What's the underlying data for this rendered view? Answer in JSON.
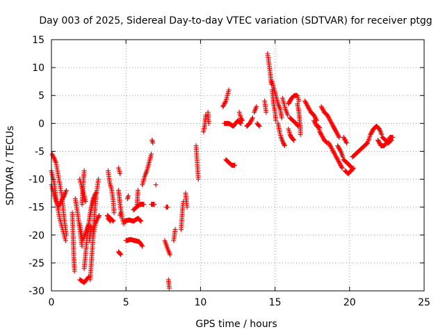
{
  "chart_data": {
    "type": "scatter",
    "title": "Day 003 of 2025, Sidereal Day-to-day VTEC variation (SDTVAR) for receiver ptgg",
    "xlabel": "GPS time / hours",
    "ylabel": "SDTVAR / TECUs",
    "xlim": [
      0,
      25
    ],
    "ylim": [
      -30,
      15
    ],
    "xticks": [
      "0",
      "5",
      "10",
      "15",
      "20",
      "25"
    ],
    "yticks": [
      "15",
      "10",
      "5",
      "0",
      "-5",
      "-10",
      "-15",
      "-20",
      "-25",
      "-30"
    ],
    "grid": true,
    "marker": "+",
    "color": "#ff0000",
    "arcs": [
      [
        [
          0.0,
          -8.5
        ],
        [
          0.2,
          -11
        ],
        [
          0.35,
          -14
        ],
        [
          0.55,
          -17
        ],
        [
          0.75,
          -19
        ],
        [
          0.95,
          -21
        ]
      ],
      [
        [
          0.05,
          -5.5
        ],
        [
          0.3,
          -7
        ],
        [
          0.5,
          -10
        ],
        [
          0.7,
          -13
        ],
        [
          0.85,
          -17
        ],
        [
          1.0,
          -20
        ]
      ],
      [
        [
          0.0,
          -11
        ],
        [
          0.25,
          -13.5
        ],
        [
          0.45,
          -15
        ],
        [
          0.65,
          -14
        ],
        [
          0.85,
          -13
        ],
        [
          1.0,
          -12
        ]
      ],
      [
        [
          1.4,
          -16
        ],
        [
          1.45,
          -20
        ],
        [
          1.5,
          -24
        ],
        [
          1.55,
          -26.5
        ]
      ],
      [
        [
          1.6,
          -13.5
        ],
        [
          1.75,
          -16
        ],
        [
          1.9,
          -19
        ],
        [
          2.05,
          -22
        ]
      ],
      [
        [
          1.9,
          -10
        ],
        [
          2.0,
          -11
        ],
        [
          2.15,
          -12.5
        ],
        [
          2.3,
          -14
        ]
      ],
      [
        [
          2.2,
          -8.5
        ],
        [
          2.15,
          -10
        ],
        [
          2.1,
          -12
        ],
        [
          2.05,
          -14.5
        ]
      ],
      [
        [
          1.9,
          -28
        ],
        [
          2.2,
          -28.5
        ],
        [
          2.5,
          -27.5
        ]
      ],
      [
        [
          2.6,
          -28
        ],
        [
          2.7,
          -24
        ],
        [
          2.8,
          -20
        ],
        [
          2.9,
          -16
        ],
        [
          3.0,
          -13
        ],
        [
          3.15,
          -10
        ]
      ],
      [
        [
          2.2,
          -26
        ],
        [
          2.4,
          -20
        ],
        [
          2.6,
          -16
        ],
        [
          2.8,
          -13.5
        ],
        [
          2.95,
          -12.5
        ]
      ],
      [
        [
          1.9,
          -18
        ],
        [
          2.1,
          -21
        ],
        [
          2.3,
          -19.5
        ],
        [
          2.5,
          -18
        ],
        [
          2.7,
          -15
        ],
        [
          2.9,
          -13
        ]
      ],
      [
        [
          2.8,
          -20
        ],
        [
          2.95,
          -18
        ],
        [
          3.1,
          -17
        ],
        [
          3.2,
          -16.5
        ]
      ],
      [
        [
          2.65,
          -18.5
        ],
        [
          2.55,
          -21
        ]
      ],
      [
        [
          3.8,
          -8.5
        ],
        [
          3.9,
          -10.5
        ],
        [
          4.05,
          -12
        ],
        [
          4.15,
          -14
        ],
        [
          4.2,
          -16
        ]
      ],
      [
        [
          3.75,
          -16.5
        ],
        [
          3.95,
          -17
        ],
        [
          4.15,
          -17.5
        ]
      ],
      [
        [
          4.5,
          -8
        ],
        [
          4.6,
          -9
        ]
      ],
      [
        [
          4.5,
          -12
        ],
        [
          4.6,
          -14.5
        ],
        [
          4.75,
          -17
        ],
        [
          4.85,
          -18
        ]
      ],
      [
        [
          4.5,
          -23
        ],
        [
          4.65,
          -23.5
        ]
      ],
      [
        [
          3.8,
          -17
        ],
        [
          3.95,
          -17.5
        ]
      ],
      [
        [
          4.6,
          -16.5
        ],
        [
          4.65,
          -16
        ]
      ],
      [
        [
          4.9,
          -17.5
        ],
        [
          5.2,
          -17.3
        ],
        [
          5.5,
          -17.5
        ],
        [
          5.8,
          -17
        ],
        [
          6.0,
          -17.5
        ]
      ],
      [
        [
          5.1,
          -13.5
        ],
        [
          5.15,
          -13
        ]
      ],
      [
        [
          5.5,
          -15.5
        ],
        [
          5.7,
          -15
        ],
        [
          5.95,
          -14.5
        ],
        [
          6.2,
          -14.5
        ]
      ],
      [
        [
          5.0,
          -21
        ],
        [
          5.3,
          -20.8
        ],
        [
          5.6,
          -21
        ],
        [
          5.9,
          -21.2
        ],
        [
          6.1,
          -22
        ]
      ],
      [
        [
          5.8,
          -12
        ],
        [
          5.75,
          -14.5
        ]
      ],
      [
        [
          6.1,
          -11
        ],
        [
          6.25,
          -9.5
        ],
        [
          6.4,
          -8.5
        ],
        [
          6.55,
          -7
        ],
        [
          6.7,
          -5.5
        ]
      ],
      [
        [
          6.7,
          -14.5
        ],
        [
          6.9,
          -14.5
        ]
      ],
      [
        [
          6.8,
          -3.5
        ],
        [
          6.75,
          -3
        ]
      ],
      [
        [
          7.0,
          -11
        ]
      ],
      [
        [
          7.7,
          -15
        ],
        [
          7.8,
          -15
        ]
      ],
      [
        [
          7.6,
          -21
        ],
        [
          7.8,
          -22.5
        ],
        [
          7.95,
          -23.5
        ]
      ],
      [
        [
          7.85,
          -28
        ],
        [
          7.9,
          -29.5
        ]
      ],
      [
        [
          8.2,
          -21
        ],
        [
          8.3,
          -19
        ]
      ],
      [
        [
          8.7,
          -19
        ],
        [
          8.75,
          -17
        ],
        [
          8.8,
          -15
        ],
        [
          8.85,
          -14
        ]
      ],
      [
        [
          9.0,
          -12.5
        ],
        [
          9.05,
          -14
        ],
        [
          9.1,
          -15
        ]
      ],
      [
        [
          9.7,
          -4
        ],
        [
          9.75,
          -6
        ],
        [
          9.8,
          -8
        ],
        [
          9.85,
          -10
        ]
      ],
      [
        [
          10.2,
          -1.5
        ],
        [
          10.3,
          0
        ],
        [
          10.35,
          1.5
        ]
      ],
      [
        [
          10.5,
          2
        ],
        [
          10.55,
          0
        ]
      ],
      [
        [
          11.5,
          3
        ],
        [
          11.7,
          4
        ],
        [
          11.9,
          6
        ]
      ],
      [
        [
          11.7,
          -6.5
        ],
        [
          11.9,
          -7
        ],
        [
          12.1,
          -7.5
        ],
        [
          12.3,
          -7.5
        ]
      ],
      [
        [
          11.6,
          0
        ],
        [
          11.9,
          0
        ],
        [
          12.2,
          -0.5
        ],
        [
          12.5,
          0.5
        ],
        [
          12.7,
          0
        ]
      ],
      [
        [
          12.6,
          2
        ],
        [
          12.7,
          1
        ],
        [
          12.8,
          0.5
        ]
      ],
      [
        [
          13.1,
          -0.5
        ],
        [
          13.3,
          0
        ],
        [
          13.5,
          1
        ]
      ],
      [
        [
          13.6,
          2
        ],
        [
          13.75,
          3
        ]
      ],
      [
        [
          13.8,
          0
        ],
        [
          13.95,
          -0.5
        ]
      ],
      [
        [
          14.3,
          4
        ],
        [
          14.4,
          2
        ]
      ],
      [
        [
          14.5,
          12.5
        ],
        [
          14.55,
          11.5
        ],
        [
          14.6,
          10.5
        ],
        [
          14.65,
          9.5
        ],
        [
          14.7,
          8.5
        ],
        [
          14.75,
          7
        ]
      ],
      [
        [
          14.8,
          6
        ],
        [
          14.85,
          5
        ],
        [
          14.9,
          3.5
        ],
        [
          15.0,
          2
        ],
        [
          15.05,
          0.5
        ]
      ],
      [
        [
          14.8,
          7.5
        ],
        [
          14.9,
          6.5
        ],
        [
          15.05,
          5
        ],
        [
          15.2,
          3.5
        ],
        [
          15.35,
          2.5
        ],
        [
          15.45,
          1
        ]
      ],
      [
        [
          15.2,
          0
        ],
        [
          15.3,
          -1.5
        ],
        [
          15.4,
          -2.5
        ],
        [
          15.55,
          -3.5
        ],
        [
          15.65,
          -4
        ]
      ],
      [
        [
          15.5,
          4.5
        ],
        [
          15.6,
          3.5
        ],
        [
          15.7,
          2.5
        ],
        [
          15.85,
          1.5
        ]
      ],
      [
        [
          15.9,
          -1
        ],
        [
          16.0,
          -2
        ],
        [
          16.1,
          -2.5
        ],
        [
          16.25,
          -3
        ]
      ],
      [
        [
          15.9,
          3.5
        ],
        [
          16.1,
          4.5
        ],
        [
          16.3,
          5
        ],
        [
          16.5,
          5
        ],
        [
          16.6,
          4
        ]
      ],
      [
        [
          16.5,
          3.5
        ],
        [
          16.6,
          2
        ],
        [
          16.65,
          0.5
        ],
        [
          16.7,
          -1
        ],
        [
          16.7,
          -2
        ]
      ],
      [
        [
          16.0,
          1
        ],
        [
          16.2,
          0.5
        ],
        [
          16.4,
          0
        ],
        [
          16.55,
          -0.5
        ]
      ],
      [
        [
          17.0,
          4
        ],
        [
          17.2,
          3
        ],
        [
          17.4,
          2
        ],
        [
          17.6,
          1.5
        ],
        [
          17.8,
          0.5
        ]
      ],
      [
        [
          17.9,
          -0.5
        ],
        [
          18.0,
          -1.5
        ],
        [
          18.1,
          -2
        ],
        [
          18.3,
          -3
        ],
        [
          18.5,
          -3.5
        ]
      ],
      [
        [
          17.6,
          0.5
        ],
        [
          17.8,
          -0.5
        ],
        [
          18.0,
          -0.8
        ]
      ],
      [
        [
          18.1,
          3
        ],
        [
          18.3,
          2
        ],
        [
          18.5,
          1.5
        ],
        [
          18.7,
          0.5
        ],
        [
          18.9,
          -0.5
        ],
        [
          19.1,
          -1.5
        ],
        [
          19.3,
          -2.5
        ]
      ],
      [
        [
          18.6,
          -3.5
        ],
        [
          18.8,
          -4.5
        ],
        [
          19.0,
          -5.5
        ],
        [
          19.2,
          -6.5
        ],
        [
          19.4,
          -7.5
        ],
        [
          19.5,
          -8
        ]
      ],
      [
        [
          19.2,
          -4
        ],
        [
          19.4,
          -5
        ],
        [
          19.55,
          -6
        ]
      ],
      [
        [
          19.6,
          -6.5
        ],
        [
          19.8,
          -7
        ],
        [
          20.0,
          -7.5
        ],
        [
          20.15,
          -8
        ]
      ],
      [
        [
          19.7,
          -8.5
        ],
        [
          19.9,
          -9
        ],
        [
          20.1,
          -8.5
        ],
        [
          20.25,
          -8
        ]
      ],
      [
        [
          19.6,
          -2.5
        ],
        [
          19.8,
          -3.5
        ]
      ],
      [
        [
          20.2,
          -6
        ],
        [
          20.4,
          -5.5
        ],
        [
          20.6,
          -5
        ],
        [
          20.8,
          -4.5
        ],
        [
          21.0,
          -4
        ],
        [
          21.2,
          -3.5
        ],
        [
          21.4,
          -2
        ],
        [
          21.6,
          -1
        ],
        [
          21.8,
          -0.5
        ],
        [
          22.0,
          -1
        ],
        [
          22.15,
          -2
        ]
      ],
      [
        [
          22.2,
          -2.5
        ],
        [
          22.4,
          -3
        ],
        [
          22.6,
          -3.5
        ],
        [
          22.8,
          -3
        ]
      ],
      [
        [
          21.9,
          -3
        ],
        [
          22.1,
          -4
        ],
        [
          22.3,
          -4
        ],
        [
          22.5,
          -3.5
        ],
        [
          22.7,
          -2.5
        ],
        [
          22.9,
          -2.5
        ]
      ]
    ]
  }
}
